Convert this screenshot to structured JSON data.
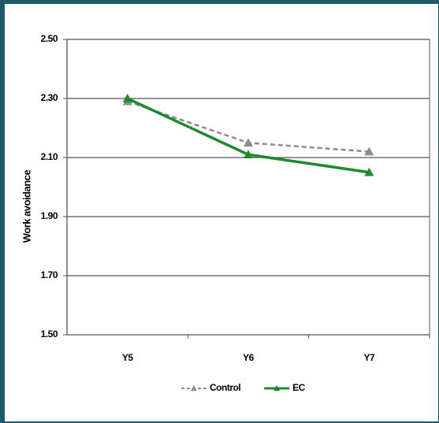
{
  "chart_data": {
    "type": "line",
    "y_label": "Work avoidance",
    "categories": [
      "Y5",
      "Y6",
      "Y7"
    ],
    "series": [
      {
        "name": "Control",
        "color": "#8c8c8c",
        "dashed": true,
        "values": [
          2.29,
          2.15,
          2.12
        ]
      },
      {
        "name": "EC",
        "color": "#1e8a2e",
        "dashed": false,
        "values": [
          2.3,
          2.11,
          2.05
        ]
      }
    ],
    "ylim": [
      1.5,
      2.5
    ],
    "yticks": [
      {
        "value": 1.5,
        "label": "1.50"
      },
      {
        "value": 1.7,
        "label": "1.70"
      },
      {
        "value": 1.9,
        "label": "1.90"
      },
      {
        "value": 2.1,
        "label": "2.10"
      },
      {
        "value": 2.3,
        "label": "2.30"
      },
      {
        "value": 2.5,
        "label": "2.50"
      }
    ],
    "grid": true,
    "legend": "bottom"
  }
}
